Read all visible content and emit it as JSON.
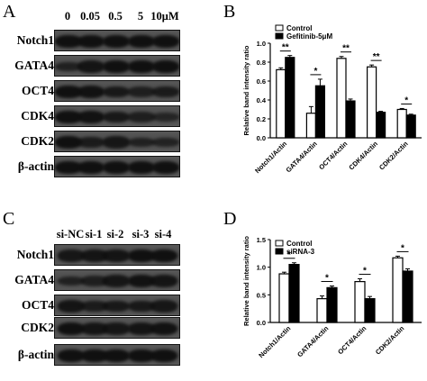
{
  "panels": [
    {
      "letter": "A",
      "lanes": [
        "0",
        "0.05",
        "0.5",
        "5",
        "10μM"
      ],
      "rows": [
        {
          "label": "Notch1",
          "band": [
            0.95,
            0.95,
            0.95,
            0.95,
            0.95
          ]
        },
        {
          "label": "GATA4",
          "band": [
            0.55,
            0.85,
            0.95,
            0.95,
            0.95
          ]
        },
        {
          "label": "OCT4",
          "band": [
            0.95,
            0.9,
            0.75,
            0.6,
            0.7
          ]
        },
        {
          "label": "CDK4",
          "band": [
            0.95,
            0.9,
            0.75,
            0.6,
            0.45
          ]
        },
        {
          "label": "CDK2",
          "band": [
            0.95,
            0.7,
            0.8,
            0.55,
            0.5
          ]
        },
        {
          "label": "β-actin",
          "band": [
            0.95,
            0.95,
            0.95,
            0.95,
            0.95
          ]
        }
      ]
    },
    {
      "letter": "B"
    },
    {
      "letter": "C",
      "lanes": [
        "si-NC",
        "si-1",
        "si-2",
        "si-3",
        "si-4"
      ],
      "rows": [
        {
          "label": "Notch1",
          "band": [
            0.8,
            0.85,
            0.85,
            0.95,
            0.95
          ]
        },
        {
          "label": "GATA4",
          "band": [
            0.55,
            0.6,
            0.8,
            0.9,
            0.85
          ]
        },
        {
          "label": "OCT4",
          "band": [
            0.85,
            0.7,
            0.75,
            0.75,
            0.8
          ]
        },
        {
          "label": "CDK2",
          "band": [
            0.95,
            0.85,
            0.8,
            0.85,
            0.9
          ]
        },
        {
          "label": "β-actin",
          "band": [
            0.95,
            0.95,
            0.95,
            0.95,
            0.95
          ]
        }
      ]
    },
    {
      "letter": "D"
    }
  ],
  "chart_data": [
    {
      "type": "bar",
      "categories": [
        "Notch1/Actin",
        "GATA4/Actin",
        "OCT4/Actin",
        "CDK4/Actin",
        "CDK2/Actin"
      ],
      "series": [
        {
          "name": "Control",
          "color": "#ffffff",
          "values": [
            0.72,
            0.26,
            0.84,
            0.75,
            0.3
          ],
          "errors": [
            0.02,
            0.07,
            0.02,
            0.02,
            0.01
          ]
        },
        {
          "name": "Gefitinib-5μM",
          "color": "#000000",
          "values": [
            0.85,
            0.55,
            0.39,
            0.27,
            0.24
          ],
          "errors": [
            0.02,
            0.07,
            0.02,
            0.01,
            0.01
          ]
        }
      ],
      "significance": [
        "**",
        "*",
        "**",
        "**",
        "*"
      ],
      "ylabel": "Relative band intensity ratio",
      "ylim": [
        0,
        1.0
      ],
      "yticks": [
        "0.0",
        "0.2",
        "0.4",
        "0.6",
        "0.8",
        "1.0"
      ],
      "legend": "top-left"
    },
    {
      "type": "bar",
      "categories": [
        "Notch1/Actin",
        "GATA4/Actin",
        "OCT4/Actin",
        "CDK2/Actin"
      ],
      "series": [
        {
          "name": "Control",
          "color": "#ffffff",
          "values": [
            0.88,
            0.43,
            0.74,
            1.17
          ],
          "errors": [
            0.03,
            0.05,
            0.05,
            0.03
          ]
        },
        {
          "name": "siRNA-3",
          "color": "#000000",
          "values": [
            1.05,
            0.63,
            0.43,
            0.93
          ],
          "errors": [
            0.03,
            0.03,
            0.04,
            0.04
          ]
        }
      ],
      "significance": [
        "*",
        "*",
        "*",
        "*"
      ],
      "ylabel": "Relative band intensity ratio",
      "ylim": [
        0,
        1.5
      ],
      "yticks": [
        "0.0",
        "0.5",
        "1.0",
        "1.5"
      ],
      "legend": "top-left"
    }
  ]
}
